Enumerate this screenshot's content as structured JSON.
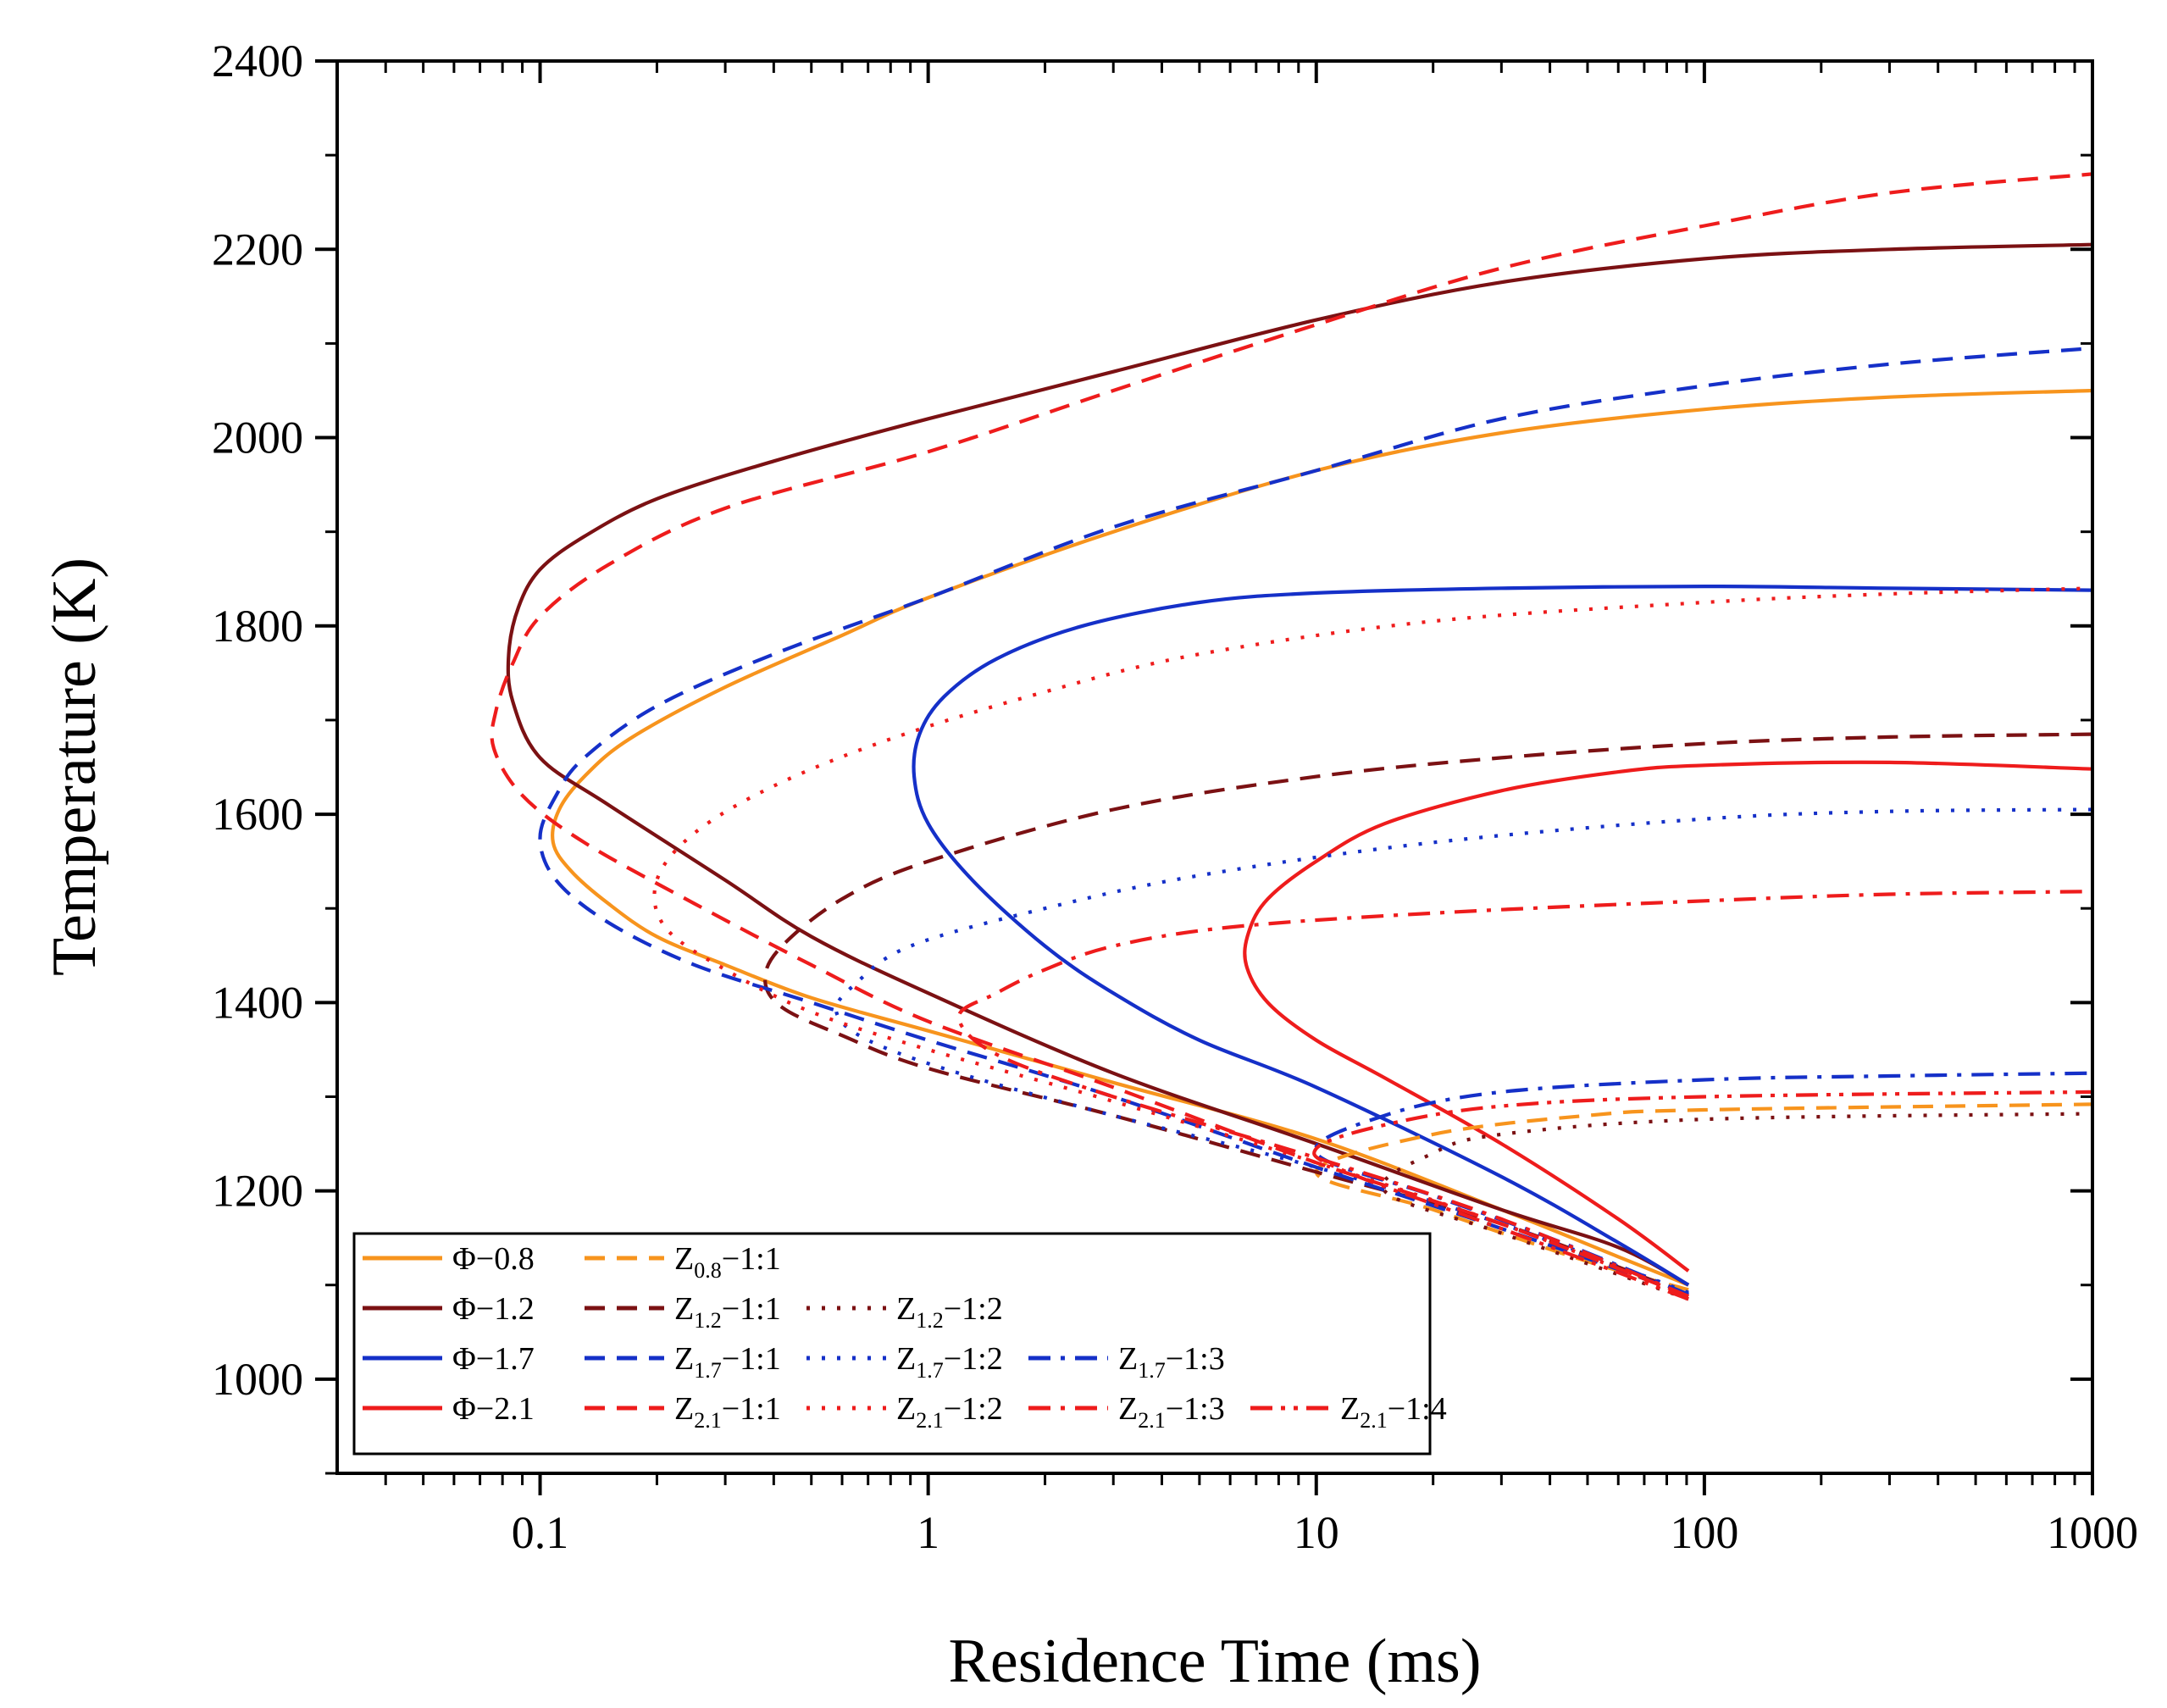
{
  "chart_data": {
    "type": "line",
    "title": "",
    "xlabel": "Residence Time (ms)",
    "ylabel": "Temperature (K)",
    "xscale": "log",
    "xlim": [
      0.03,
      1000
    ],
    "ylim": [
      900,
      2400
    ],
    "x_tick_values": [
      0.1,
      1,
      10,
      100,
      1000
    ],
    "x_tick_labels": [
      "0.1",
      "1",
      "10",
      "100",
      "1000"
    ],
    "y_tick_values": [
      1000,
      1200,
      1400,
      1600,
      1800,
      2000,
      2200,
      2400
    ],
    "y_tick_labels": [
      "1000",
      "1200",
      "1400",
      "1600",
      "1800",
      "2000",
      "2200",
      "2400"
    ],
    "legend_position": "bottom-left",
    "series": [
      {
        "id": "phi-0-8",
        "label_main": "Φ−0.8",
        "label_sub": "",
        "label_suffix": "",
        "color": "#F7941D",
        "style": "solid",
        "width": 4.2,
        "points": [
          [
            91,
            1100
          ],
          [
            60,
            1130
          ],
          [
            30,
            1180
          ],
          [
            10,
            1255
          ],
          [
            3,
            1315
          ],
          [
            1,
            1370
          ],
          [
            0.5,
            1405
          ],
          [
            0.3,
            1440
          ],
          [
            0.2,
            1470
          ],
          [
            0.15,
            1505
          ],
          [
            0.12,
            1540
          ],
          [
            0.108,
            1570
          ],
          [
            0.112,
            1605
          ],
          [
            0.13,
            1640
          ],
          [
            0.17,
            1680
          ],
          [
            0.3,
            1735
          ],
          [
            0.6,
            1790
          ],
          [
            1,
            1830
          ],
          [
            3,
            1900
          ],
          [
            10,
            1965
          ],
          [
            30,
            2005
          ],
          [
            100,
            2030
          ],
          [
            300,
            2043
          ],
          [
            1000,
            2050
          ]
        ]
      },
      {
        "id": "phi-1-2",
        "label_main": "Φ−1.2",
        "label_sub": "",
        "label_suffix": "",
        "color": "#7B1113",
        "style": "solid",
        "width": 4.2,
        "points": [
          [
            91,
            1100
          ],
          [
            60,
            1140
          ],
          [
            30,
            1180
          ],
          [
            10,
            1250
          ],
          [
            3,
            1325
          ],
          [
            1,
            1410
          ],
          [
            0.5,
            1470
          ],
          [
            0.3,
            1530
          ],
          [
            0.15,
            1610
          ],
          [
            0.1,
            1660
          ],
          [
            0.085,
            1720
          ],
          [
            0.083,
            1770
          ],
          [
            0.088,
            1820
          ],
          [
            0.1,
            1860
          ],
          [
            0.13,
            1895
          ],
          [
            0.2,
            1935
          ],
          [
            0.4,
            1975
          ],
          [
            1,
            2020
          ],
          [
            3,
            2070
          ],
          [
            10,
            2125
          ],
          [
            30,
            2165
          ],
          [
            100,
            2190
          ],
          [
            300,
            2200
          ],
          [
            1000,
            2205
          ]
        ]
      },
      {
        "id": "phi-1-7",
        "label_main": "Φ−1.7",
        "label_sub": "",
        "label_suffix": "",
        "color": "#1530C8",
        "style": "solid",
        "width": 4.2,
        "points": [
          [
            91,
            1100
          ],
          [
            60,
            1145
          ],
          [
            30,
            1215
          ],
          [
            10,
            1310
          ],
          [
            5,
            1360
          ],
          [
            3,
            1410
          ],
          [
            2,
            1460
          ],
          [
            1.3,
            1530
          ],
          [
            1,
            1590
          ],
          [
            0.92,
            1640
          ],
          [
            0.95,
            1685
          ],
          [
            1.1,
            1725
          ],
          [
            1.5,
            1765
          ],
          [
            2.5,
            1800
          ],
          [
            5,
            1825
          ],
          [
            10,
            1835
          ],
          [
            30,
            1840
          ],
          [
            100,
            1842
          ],
          [
            300,
            1840
          ],
          [
            1000,
            1838
          ]
        ]
      },
      {
        "id": "phi-2-1",
        "label_main": "Φ−2.1",
        "label_sub": "",
        "label_suffix": "",
        "color": "#EE1C1C",
        "style": "solid",
        "width": 4.2,
        "points": [
          [
            91,
            1115
          ],
          [
            60,
            1170
          ],
          [
            30,
            1250
          ],
          [
            15,
            1320
          ],
          [
            10,
            1360
          ],
          [
            7.5,
            1400
          ],
          [
            6.6,
            1440
          ],
          [
            6.7,
            1475
          ],
          [
            7.5,
            1510
          ],
          [
            10,
            1550
          ],
          [
            15,
            1590
          ],
          [
            30,
            1625
          ],
          [
            60,
            1645
          ],
          [
            100,
            1652
          ],
          [
            300,
            1655
          ],
          [
            1000,
            1648
          ]
        ]
      },
      {
        "id": "z-0-8-1-1",
        "label_main": "Z",
        "label_sub": "0.8",
        "label_suffix": "−1:1",
        "color": "#F7941D",
        "style": "dash",
        "width": 4.2,
        "points": [
          [
            91,
            1095
          ],
          [
            50,
            1125
          ],
          [
            20,
            1180
          ],
          [
            10,
            1220
          ],
          [
            20,
            1260
          ],
          [
            50,
            1280
          ],
          [
            100,
            1286
          ],
          [
            1000,
            1292
          ]
        ]
      },
      {
        "id": "z-1-2-1-1",
        "label_main": "Z",
        "label_sub": "1.2",
        "label_suffix": "−1:1",
        "color": "#7B1113",
        "style": "dash",
        "width": 4.2,
        "points": [
          [
            91,
            1090
          ],
          [
            30,
            1165
          ],
          [
            10,
            1220
          ],
          [
            3,
            1280
          ],
          [
            1,
            1330
          ],
          [
            0.6,
            1365
          ],
          [
            0.42,
            1395
          ],
          [
            0.38,
            1425
          ],
          [
            0.42,
            1460
          ],
          [
            0.6,
            1510
          ],
          [
            1,
            1550
          ],
          [
            3,
            1605
          ],
          [
            10,
            1640
          ],
          [
            30,
            1660
          ],
          [
            100,
            1675
          ],
          [
            300,
            1682
          ],
          [
            1000,
            1685
          ]
        ]
      },
      {
        "id": "z-1-2-1-2",
        "label_main": "Z",
        "label_sub": "1.2",
        "label_suffix": "−1:2",
        "color": "#7B1113",
        "style": "dot",
        "width": 4.2,
        "points": [
          [
            91,
            1085
          ],
          [
            30,
            1155
          ],
          [
            15,
            1200
          ],
          [
            20,
            1240
          ],
          [
            30,
            1260
          ],
          [
            100,
            1276
          ],
          [
            1000,
            1282
          ]
        ]
      },
      {
        "id": "z-1-7-1-1",
        "label_main": "Z",
        "label_sub": "1.7",
        "label_suffix": "−1:1",
        "color": "#1530C8",
        "style": "dash",
        "width": 4.2,
        "points": [
          [
            91,
            1090
          ],
          [
            30,
            1160
          ],
          [
            10,
            1225
          ],
          [
            3,
            1300
          ],
          [
            1,
            1360
          ],
          [
            0.5,
            1400
          ],
          [
            0.25,
            1440
          ],
          [
            0.15,
            1485
          ],
          [
            0.11,
            1530
          ],
          [
            0.1,
            1575
          ],
          [
            0.11,
            1620
          ],
          [
            0.13,
            1660
          ],
          [
            0.2,
            1715
          ],
          [
            0.4,
            1770
          ],
          [
            1,
            1830
          ],
          [
            3,
            1905
          ],
          [
            10,
            1965
          ],
          [
            30,
            2020
          ],
          [
            100,
            2055
          ],
          [
            300,
            2078
          ],
          [
            1000,
            2095
          ]
        ]
      },
      {
        "id": "z-1-7-1-2",
        "label_main": "Z",
        "label_sub": "1.7",
        "label_suffix": "−1:2",
        "color": "#1530C8",
        "style": "dot",
        "width": 4.2,
        "points": [
          [
            91,
            1092
          ],
          [
            30,
            1165
          ],
          [
            10,
            1225
          ],
          [
            3,
            1280
          ],
          [
            1.2,
            1325
          ],
          [
            0.7,
            1360
          ],
          [
            0.58,
            1390
          ],
          [
            0.65,
            1420
          ],
          [
            0.9,
            1460
          ],
          [
            2,
            1500
          ],
          [
            5,
            1535
          ],
          [
            20,
            1570
          ],
          [
            100,
            1595
          ],
          [
            300,
            1603
          ],
          [
            1000,
            1605
          ]
        ]
      },
      {
        "id": "z-1-7-1-3",
        "label_main": "Z",
        "label_sub": "1.7",
        "label_suffix": "−1:3",
        "color": "#1530C8",
        "style": "dashdot",
        "width": 4.2,
        "points": [
          [
            91,
            1090
          ],
          [
            40,
            1150
          ],
          [
            20,
            1195
          ],
          [
            10,
            1240
          ],
          [
            15,
            1280
          ],
          [
            30,
            1305
          ],
          [
            100,
            1318
          ],
          [
            300,
            1322
          ],
          [
            1000,
            1325
          ]
        ]
      },
      {
        "id": "z-2-1-1-1",
        "label_main": "Z",
        "label_sub": "2.1",
        "label_suffix": "−1:1",
        "color": "#EE1C1C",
        "style": "dash",
        "width": 4.2,
        "points": [
          [
            91,
            1088
          ],
          [
            30,
            1165
          ],
          [
            10,
            1230
          ],
          [
            3,
            1310
          ],
          [
            1,
            1380
          ],
          [
            0.5,
            1440
          ],
          [
            0.25,
            1505
          ],
          [
            0.13,
            1570
          ],
          [
            0.09,
            1620
          ],
          [
            0.076,
            1670
          ],
          [
            0.077,
            1710
          ],
          [
            0.085,
            1760
          ],
          [
            0.1,
            1810
          ],
          [
            0.15,
            1865
          ],
          [
            0.3,
            1925
          ],
          [
            1,
            1985
          ],
          [
            3,
            2050
          ],
          [
            10,
            2120
          ],
          [
            30,
            2180
          ],
          [
            100,
            2225
          ],
          [
            300,
            2260
          ],
          [
            1000,
            2280
          ]
        ]
      },
      {
        "id": "z-2-1-1-2",
        "label_main": "Z",
        "label_sub": "2.1",
        "label_suffix": "−1:2",
        "color": "#EE1C1C",
        "style": "dot",
        "width": 4.2,
        "points": [
          [
            91,
            1088
          ],
          [
            30,
            1165
          ],
          [
            10,
            1230
          ],
          [
            3,
            1295
          ],
          [
            1,
            1350
          ],
          [
            0.5,
            1390
          ],
          [
            0.3,
            1435
          ],
          [
            0.21,
            1480
          ],
          [
            0.2,
            1530
          ],
          [
            0.25,
            1580
          ],
          [
            0.4,
            1630
          ],
          [
            0.8,
            1680
          ],
          [
            2,
            1730
          ],
          [
            5,
            1770
          ],
          [
            20,
            1805
          ],
          [
            100,
            1825
          ],
          [
            300,
            1834
          ],
          [
            1000,
            1840
          ]
        ]
      },
      {
        "id": "z-2-1-1-3",
        "label_main": "Z",
        "label_sub": "2.1",
        "label_suffix": "−1:3",
        "color": "#EE1C1C",
        "style": "dashdot",
        "width": 4.2,
        "points": [
          [
            91,
            1088
          ],
          [
            30,
            1170
          ],
          [
            10,
            1235
          ],
          [
            3,
            1300
          ],
          [
            1.5,
            1345
          ],
          [
            1.2,
            1385
          ],
          [
            1.5,
            1410
          ],
          [
            2,
            1435
          ],
          [
            3,
            1460
          ],
          [
            6,
            1480
          ],
          [
            20,
            1495
          ],
          [
            100,
            1508
          ],
          [
            300,
            1515
          ],
          [
            1000,
            1518
          ]
        ]
      },
      {
        "id": "z-2-1-1-4",
        "label_main": "Z",
        "label_sub": "2.1",
        "label_suffix": "−1:4",
        "color": "#EE1C1C",
        "style": "dashdotdot",
        "width": 4.2,
        "points": [
          [
            91,
            1085
          ],
          [
            30,
            1160
          ],
          [
            12,
            1220
          ],
          [
            10,
            1245
          ],
          [
            15,
            1270
          ],
          [
            30,
            1290
          ],
          [
            100,
            1300
          ],
          [
            1000,
            1305
          ]
        ]
      }
    ],
    "legend_rows": [
      [
        "phi-0-8",
        "z-0-8-1-1"
      ],
      [
        "phi-1-2",
        "z-1-2-1-1",
        "z-1-2-1-2"
      ],
      [
        "phi-1-7",
        "z-1-7-1-1",
        "z-1-7-1-2",
        "z-1-7-1-3"
      ],
      [
        "phi-2-1",
        "z-2-1-1-1",
        "z-2-1-1-2",
        "z-2-1-1-3",
        "z-2-1-1-4"
      ]
    ]
  }
}
